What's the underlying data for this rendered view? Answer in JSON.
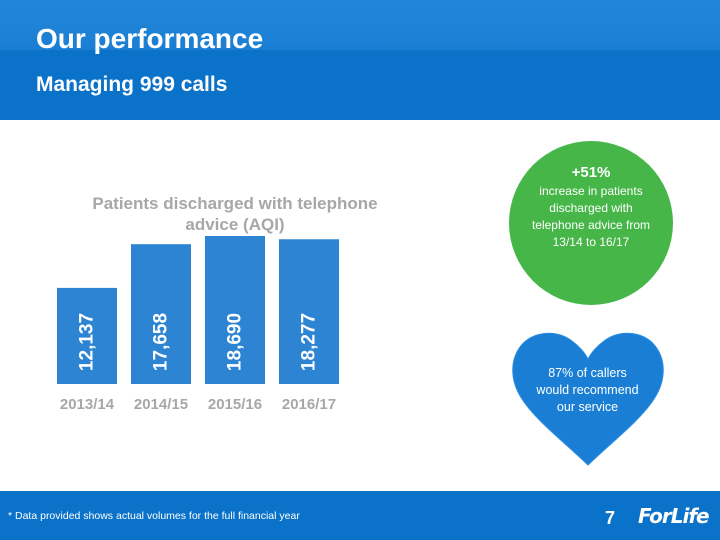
{
  "slide": {
    "title": "Our performance",
    "subtitle": "Managing 999 calls",
    "footnote": "* Data provided shows actual volumes for the full financial year",
    "page_number": "7",
    "logo_text": "ForLife"
  },
  "colors": {
    "header_blue": "#0a73c9",
    "bar_blue": "#2c84d3",
    "axis_grey": "#a7a7a7",
    "green": "#46b649",
    "heart_blue": "#1a7fd4"
  },
  "chart_data": {
    "type": "bar",
    "title": "Patients discharged with telephone advice (AQI)",
    "categories": [
      "2013/14",
      "2014/15",
      "2015/16",
      "2016/17"
    ],
    "values": [
      12137,
      17658,
      18690,
      18277
    ],
    "value_labels": [
      "12,137",
      "17,658",
      "18,690",
      "18,277"
    ],
    "xlabel": "",
    "ylabel": "",
    "ylim": [
      0,
      21000
    ],
    "grid": false,
    "legend": "none"
  },
  "callouts": {
    "growth_value": "+51%",
    "growth_text": "increase in patients discharged with telephone advice from 13/14 to 16/17",
    "recommend_text": "87% of callers would recommend our service"
  }
}
